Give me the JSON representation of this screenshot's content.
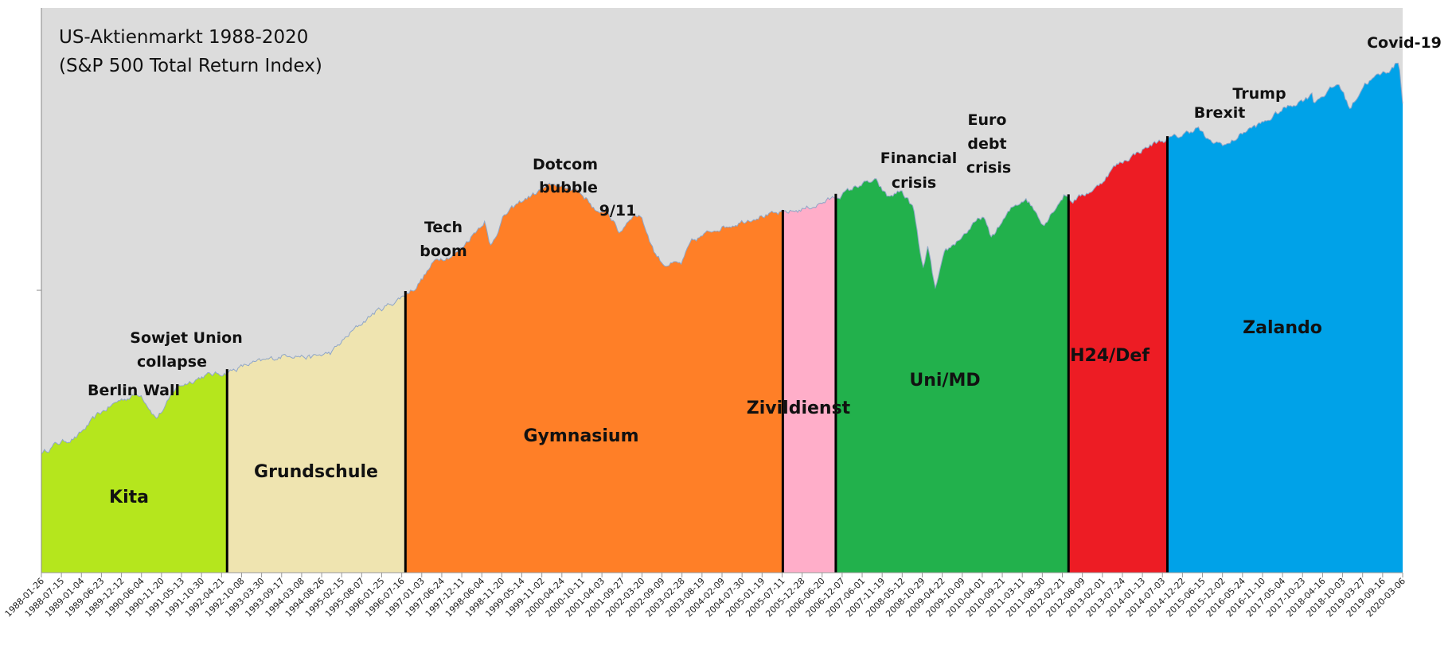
{
  "chart_data": {
    "type": "area",
    "title": "US-Aktienmarkt 1988-2020",
    "subtitle": "(S&P 500 Total Return Index)",
    "y_scale": "log",
    "grid": false,
    "legend": "none",
    "x_start": "1988-01-26",
    "x_end": "2020-03-23",
    "x_ticks": [
      "1988-01-26",
      "1988-07-15",
      "1989-01-04",
      "1989-06-23",
      "1989-12-12",
      "1990-06-04",
      "1990-11-20",
      "1991-05-13",
      "1991-10-30",
      "1992-04-21",
      "1992-10-08",
      "1993-03-30",
      "1993-09-17",
      "1994-03-08",
      "1994-08-26",
      "1995-02-15",
      "1995-08-07",
      "1996-01-25",
      "1996-07-16",
      "1997-01-03",
      "1997-06-24",
      "1997-12-11",
      "1998-06-04",
      "1998-11-20",
      "1999-05-14",
      "1999-11-02",
      "2000-04-24",
      "2000-10-11",
      "2001-04-03",
      "2001-09-27",
      "2002-03-20",
      "2002-09-09",
      "2003-02-28",
      "2003-08-19",
      "2004-02-09",
      "2004-07-30",
      "2005-01-19",
      "2005-07-11",
      "2005-12-28",
      "2006-06-20",
      "2006-12-07",
      "2007-06-01",
      "2007-11-19",
      "2008-05-12",
      "2008-10-29",
      "2009-04-22",
      "2009-10-09",
      "2010-04-01",
      "2010-09-21",
      "2011-03-11",
      "2011-08-30",
      "2012-02-21",
      "2012-08-09",
      "2013-02-01",
      "2013-07-24",
      "2014-01-13",
      "2014-07-03",
      "2014-12-22",
      "2015-06-15",
      "2015-12-02",
      "2016-05-24",
      "2016-11-10",
      "2017-05-04",
      "2017-10-23",
      "2018-04-16",
      "2018-10-03",
      "2019-03-27",
      "2019-09-16",
      "2020-03-06"
    ],
    "series": [
      {
        "points": [
          [
            "1988-01-26",
            250
          ],
          [
            "1988-06-01",
            270
          ],
          [
            "1988-12-01",
            285
          ],
          [
            "1989-06-01",
            340
          ],
          [
            "1989-12-01",
            380
          ],
          [
            "1990-06-01",
            400
          ],
          [
            "1990-10-11",
            330
          ],
          [
            "1990-12-31",
            360
          ],
          [
            "1991-04-01",
            420
          ],
          [
            "1991-12-01",
            460
          ],
          [
            "1992-06-01",
            470
          ],
          [
            "1992-12-01",
            500
          ],
          [
            "1993-06-01",
            520
          ],
          [
            "1993-12-01",
            545
          ],
          [
            "1994-06-01",
            530
          ],
          [
            "1994-12-01",
            550
          ],
          [
            "1995-06-01",
            650
          ],
          [
            "1995-12-01",
            750
          ],
          [
            "1996-06-01",
            820
          ],
          [
            "1996-12-01",
            920
          ],
          [
            "1997-06-01",
            1150
          ],
          [
            "1997-10-27",
            1180
          ],
          [
            "1997-12-31",
            1250
          ],
          [
            "1998-07-17",
            1550
          ],
          [
            "1998-08-31",
            1250
          ],
          [
            "1998-12-31",
            1600
          ],
          [
            "1999-06-01",
            1800
          ],
          [
            "1999-12-31",
            2000
          ],
          [
            "2000-03-24",
            2050
          ],
          [
            "2000-06-01",
            1980
          ],
          [
            "2000-09-01",
            2000
          ],
          [
            "2000-12-31",
            1800
          ],
          [
            "2001-04-04",
            1600
          ],
          [
            "2001-06-01",
            1700
          ],
          [
            "2001-09-21",
            1400
          ],
          [
            "2001-12-31",
            1600
          ],
          [
            "2002-03-19",
            1620
          ],
          [
            "2002-07-23",
            1200
          ],
          [
            "2002-10-09",
            1100
          ],
          [
            "2003-03-11",
            1100
          ],
          [
            "2003-06-01",
            1300
          ],
          [
            "2003-12-31",
            1450
          ],
          [
            "2004-06-01",
            1500
          ],
          [
            "2004-12-31",
            1600
          ],
          [
            "2005-06-01",
            1620
          ],
          [
            "2005-12-31",
            1680
          ],
          [
            "2006-06-01",
            1750
          ],
          [
            "2006-12-31",
            1900
          ],
          [
            "2007-06-01",
            2050
          ],
          [
            "2007-10-09",
            2100
          ],
          [
            "2008-01-22",
            1850
          ],
          [
            "2008-05-19",
            1950
          ],
          [
            "2008-09-01",
            1700
          ],
          [
            "2008-11-20",
            1050
          ],
          [
            "2009-01-02",
            1250
          ],
          [
            "2009-03-09",
            900
          ],
          [
            "2009-06-01",
            1200
          ],
          [
            "2009-12-31",
            1450
          ],
          [
            "2010-04-23",
            1600
          ],
          [
            "2010-07-02",
            1350
          ],
          [
            "2010-12-31",
            1700
          ],
          [
            "2011-04-29",
            1850
          ],
          [
            "2011-10-03",
            1500
          ],
          [
            "2011-12-31",
            1700
          ],
          [
            "2012-03-31",
            1900
          ],
          [
            "2012-06-01",
            1800
          ],
          [
            "2012-12-31",
            2000
          ],
          [
            "2013-06-01",
            2350
          ],
          [
            "2013-12-31",
            2650
          ],
          [
            "2014-06-01",
            2850
          ],
          [
            "2014-12-31",
            3000
          ],
          [
            "2015-05-21",
            3200
          ],
          [
            "2015-08-25",
            2850
          ],
          [
            "2016-02-11",
            2800
          ],
          [
            "2016-06-27",
            3100
          ],
          [
            "2016-12-31",
            3350
          ],
          [
            "2017-06-01",
            3700
          ],
          [
            "2017-12-31",
            4050
          ],
          [
            "2018-01-26",
            4300
          ],
          [
            "2018-02-08",
            3900
          ],
          [
            "2018-09-20",
            4500
          ],
          [
            "2018-12-24",
            3700
          ],
          [
            "2019-04-30",
            4500
          ],
          [
            "2019-12-31",
            5100
          ],
          [
            "2020-02-19",
            5400
          ],
          [
            "2020-03-23",
            3850
          ]
        ]
      }
    ],
    "phases": [
      {
        "label": "Kita",
        "start": "1988-01-26",
        "end": "1992-06-15",
        "color": "#b5e61d"
      },
      {
        "label": "Grundschule",
        "start": "1992-06-15",
        "end": "1996-09-01",
        "color": "#efe4b0"
      },
      {
        "label": "Gymnasium",
        "start": "1996-09-01",
        "end": "2005-08-01",
        "color": "#ff7f27"
      },
      {
        "label": "Zivildienst",
        "start": "2005-08-01",
        "end": "2006-11-01",
        "color": "#ffaec9"
      },
      {
        "label": "Uni/MD",
        "start": "2006-11-01",
        "end": "2012-05-01",
        "color": "#22b14c"
      },
      {
        "label": "H24/Def",
        "start": "2012-05-01",
        "end": "2014-09-01",
        "color": "#ed1c24"
      },
      {
        "label": "Zalando",
        "start": "2014-09-01",
        "end": "2020-03-23",
        "color": "#00a2e8"
      }
    ],
    "annotations": [
      "Berlin Wall",
      "Sowjet Union",
      "collapse",
      "Tech",
      "boom",
      "Dotcom",
      "bubble",
      "9/11",
      "Financial",
      "crisis",
      "Euro",
      "debt",
      "crisis",
      "Brexit",
      "Trump",
      "Covid-19"
    ]
  }
}
